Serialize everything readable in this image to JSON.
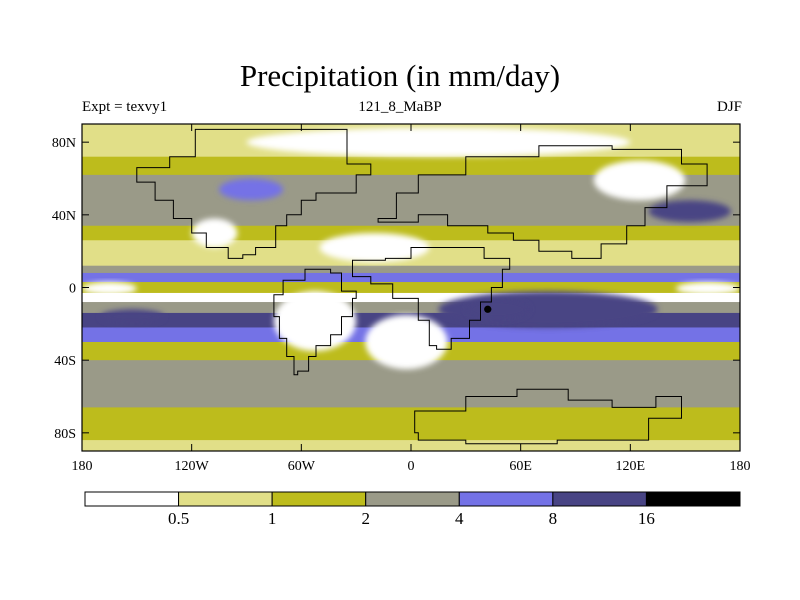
{
  "chart_data": {
    "type": "heatmap",
    "title": "Precipitation (in mm/day)",
    "subtitle_left": "Expt = texvy1",
    "subtitle_center": "121_8_MaBP",
    "subtitle_right": "DJF",
    "x_ticks": [
      {
        "value": -180,
        "label": "180"
      },
      {
        "value": -120,
        "label": "120W"
      },
      {
        "value": -60,
        "label": "60W"
      },
      {
        "value": 0,
        "label": "0"
      },
      {
        "value": 60,
        "label": "60E"
      },
      {
        "value": 120,
        "label": "120E"
      },
      {
        "value": 180,
        "label": "180"
      }
    ],
    "y_ticks": [
      {
        "value": 80,
        "label": "80N"
      },
      {
        "value": 40,
        "label": "40N"
      },
      {
        "value": 0,
        "label": "0"
      },
      {
        "value": -40,
        "label": "40S"
      },
      {
        "value": -80,
        "label": "80S"
      }
    ],
    "xlim": [
      -180,
      180
    ],
    "ylim": [
      -90,
      90
    ],
    "units": "mm/day",
    "levels": [
      0.5,
      1,
      2,
      4,
      8,
      16
    ],
    "colors": [
      "#ffffff",
      "#e1df88",
      "#bdbc1c",
      "#9a9a88",
      "#7472e6",
      "#484484",
      "#000000"
    ],
    "zonal_mean_profile": [
      {
        "lat": 90,
        "value": 0.7
      },
      {
        "lat": 80,
        "value": 0.8
      },
      {
        "lat": 72,
        "value": 1.3
      },
      {
        "lat": 62,
        "value": 2.5
      },
      {
        "lat": 50,
        "value": 3.0
      },
      {
        "lat": 42,
        "value": 2.6
      },
      {
        "lat": 34,
        "value": 1.6
      },
      {
        "lat": 26,
        "value": 0.9
      },
      {
        "lat": 18,
        "value": 0.6
      },
      {
        "lat": 12,
        "value": 3.5
      },
      {
        "lat": 8,
        "value": 6.5
      },
      {
        "lat": 3,
        "value": 1.2
      },
      {
        "lat": -3,
        "value": 0.4
      },
      {
        "lat": -8,
        "value": 2.5
      },
      {
        "lat": -14,
        "value": 9.0
      },
      {
        "lat": -22,
        "value": 5.0
      },
      {
        "lat": -30,
        "value": 1.5
      },
      {
        "lat": -40,
        "value": 3.0
      },
      {
        "lat": -50,
        "value": 3.5
      },
      {
        "lat": -58,
        "value": 2.2
      },
      {
        "lat": -66,
        "value": 1.4
      },
      {
        "lat": -76,
        "value": 1.1
      },
      {
        "lat": -84,
        "value": 0.6
      },
      {
        "lat": -90,
        "value": 0.6
      }
    ],
    "regional_features": [
      {
        "name": "dry-subtropics-north-central",
        "lon": [
          -50,
          10
        ],
        "lat": [
          14,
          30
        ],
        "value": 0.3
      },
      {
        "name": "dry-north-pacific",
        "lon": [
          -120,
          -95
        ],
        "lat": [
          22,
          38
        ],
        "value": 0.4
      },
      {
        "name": "dry-arctic",
        "lon": [
          -90,
          120
        ],
        "lat": [
          72,
          88
        ],
        "value": 0.3
      },
      {
        "name": "dry-north-asia",
        "lon": [
          100,
          150
        ],
        "lat": [
          48,
          70
        ],
        "value": 0.4
      },
      {
        "name": "dry-south-atlantic",
        "lon": [
          -75,
          -30
        ],
        "lat": [
          -35,
          -2
        ],
        "value": 0.3
      },
      {
        "name": "dry-south-africa",
        "lon": [
          -25,
          20
        ],
        "lat": [
          -45,
          -15
        ],
        "value": 0.4
      },
      {
        "name": "dry-east-pacific",
        "lon": [
          -180,
          -150
        ],
        "lat": [
          -4,
          3
        ],
        "value": 0.3
      },
      {
        "name": "dry-west-pacific",
        "lon": [
          145,
          180
        ],
        "lat": [
          -4,
          3
        ],
        "value": 0.3
      },
      {
        "name": "wet-tethys-equatorial",
        "lon": [
          15,
          135
        ],
        "lat": [
          -22,
          -2
        ],
        "value": 10
      },
      {
        "name": "wet-south-indian-core",
        "lon": [
          30,
          65
        ],
        "lat": [
          -18,
          -6
        ],
        "value": 12
      },
      {
        "name": "wet-south-pacific-core",
        "lon": [
          -170,
          -135
        ],
        "lat": [
          -20,
          -12
        ],
        "value": 10
      },
      {
        "name": "wet-north-pacific-storm",
        "lon": [
          130,
          175
        ],
        "lat": [
          36,
          48
        ],
        "value": 9
      },
      {
        "name": "wet-north-america-storm",
        "lon": [
          -105,
          -70
        ],
        "lat": [
          48,
          60
        ],
        "value": 5
      },
      {
        "name": "extreme-point",
        "lon": [
          40,
          44
        ],
        "lat": [
          -14,
          -10
        ],
        "value": 18
      }
    ],
    "continent_outlines": [
      "north-america",
      "south-america",
      "africa",
      "eurasia",
      "australia-antarctica"
    ],
    "colorbar_tick_labels": [
      "0.5",
      "1",
      "2",
      "4",
      "8",
      "16"
    ]
  }
}
